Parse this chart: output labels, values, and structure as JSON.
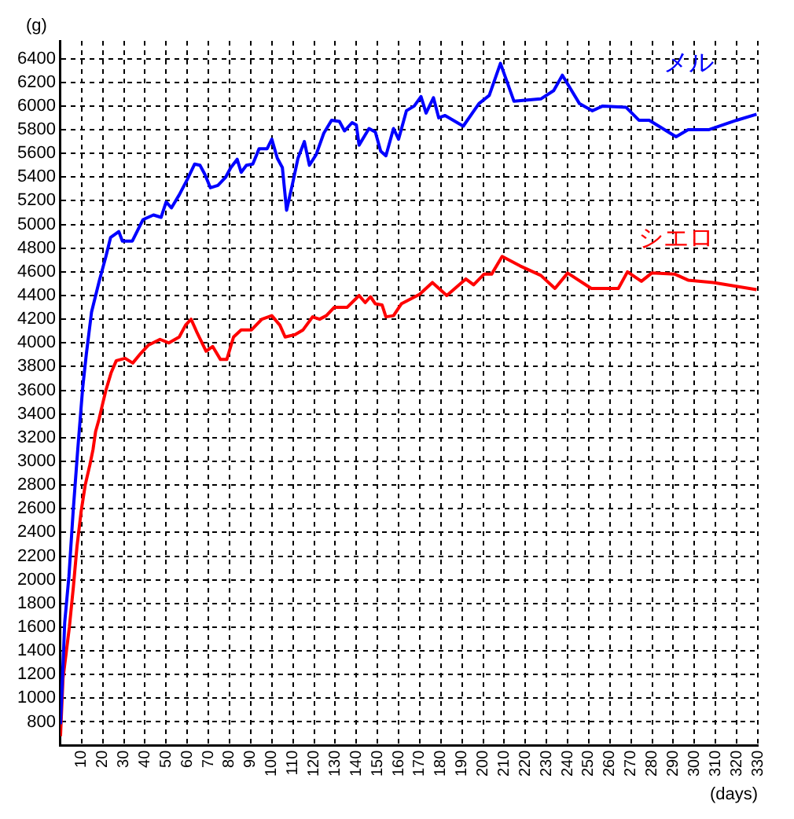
{
  "chart_data": {
    "type": "line",
    "xlabel": "(days)",
    "ylabel": "(g)",
    "xlim": [
      0,
      330
    ],
    "ylim": [
      600,
      6550
    ],
    "xticks": [
      10,
      20,
      30,
      40,
      50,
      60,
      70,
      80,
      90,
      100,
      110,
      120,
      130,
      140,
      150,
      160,
      170,
      180,
      190,
      200,
      210,
      220,
      230,
      240,
      250,
      260,
      270,
      280,
      290,
      300,
      310,
      320,
      330
    ],
    "yticks": [
      800,
      1000,
      1200,
      1400,
      1600,
      1800,
      2000,
      2200,
      2400,
      2600,
      2800,
      3000,
      3200,
      3400,
      3600,
      3800,
      4000,
      4200,
      4400,
      4600,
      4800,
      5000,
      5200,
      5400,
      5600,
      5800,
      6000,
      6200,
      6400
    ],
    "grid": true,
    "legend": false,
    "line_style": "solid",
    "marker": "none",
    "series": [
      {
        "name": "メル",
        "color": "#0000ff",
        "x": [
          0,
          1,
          2,
          4,
          6,
          8,
          10.5,
          12.2,
          14.7,
          18.3,
          21.5,
          23.7,
          27.6,
          29.3,
          34,
          39,
          44,
          47.6,
          50,
          52.5,
          56.2,
          60,
          63.5,
          66,
          68.4,
          70.9,
          74.5,
          78.2,
          80.6,
          83.6,
          85.5,
          88,
          91,
          94,
          97.8,
          100,
          102.6,
          105,
          107,
          110,
          112.4,
          115.4,
          117.8,
          121,
          124.6,
          128.3,
          132,
          134.4,
          138,
          140,
          141.3,
          144,
          146,
          149,
          151.5,
          154,
          157.6,
          160,
          163.7,
          167.4,
          170.6,
          173,
          176.5,
          179,
          182,
          190.6,
          198,
          202.9,
          208.2,
          214.6,
          227.3,
          233.4,
          237.5,
          245.6,
          251.7,
          256.6,
          267.6,
          273.7,
          278.6,
          291.3,
          297,
          306.7,
          320,
          329.4
        ],
        "values": [
          780,
          1200,
          1640,
          2030,
          2580,
          3060,
          3620,
          3900,
          4260,
          4520,
          4730,
          4890,
          4940,
          4860,
          4860,
          5040,
          5080,
          5060,
          5190,
          5140,
          5250,
          5380,
          5510,
          5500,
          5420,
          5310,
          5330,
          5400,
          5480,
          5550,
          5440,
          5500,
          5510,
          5640,
          5640,
          5720,
          5560,
          5480,
          5120,
          5360,
          5560,
          5700,
          5500,
          5590,
          5770,
          5880,
          5870,
          5790,
          5860,
          5840,
          5670,
          5750,
          5810,
          5780,
          5620,
          5580,
          5810,
          5720,
          5960,
          6000,
          6080,
          5940,
          6070,
          5900,
          5920,
          5830,
          6020,
          6090,
          6360,
          6040,
          6060,
          6130,
          6260,
          6020,
          5960,
          6000,
          5990,
          5880,
          5880,
          5740,
          5800,
          5800,
          5880,
          5930
        ]
      },
      {
        "name": "シエロ",
        "color": "#ff0000",
        "x": [
          0,
          1.2,
          2.4,
          4.2,
          6.1,
          7.8,
          9.8,
          11.7,
          13.9,
          15.4,
          16.6,
          18.3,
          20,
          21.5,
          24,
          26.4,
          30.6,
          34.2,
          37.9,
          41.5,
          47.1,
          51.3,
          56.2,
          59.2,
          61.8,
          64.8,
          68.9,
          72,
          75.7,
          78.7,
          81.9,
          85.5,
          90.4,
          95.3,
          100,
          103.8,
          106.3,
          111,
          114.8,
          119.3,
          122.6,
          125.8,
          129.5,
          135.6,
          141.3,
          144.2,
          146.7,
          149,
          152.2,
          154,
          157.6,
          161.3,
          169.9,
          176,
          182.8,
          191.8,
          195.5,
          200.4,
          204,
          209,
          217.5,
          227.3,
          234,
          240,
          251.2,
          264,
          268.3,
          274.9,
          279.8,
          290.8,
          297,
          309,
          329.4
        ],
        "values": [
          680,
          1170,
          1340,
          1600,
          1940,
          2280,
          2580,
          2800,
          2970,
          3100,
          3250,
          3360,
          3490,
          3600,
          3750,
          3850,
          3870,
          3830,
          3910,
          3980,
          4030,
          4000,
          4050,
          4150,
          4200,
          4080,
          3930,
          3970,
          3860,
          3860,
          4050,
          4110,
          4110,
          4200,
          4230,
          4150,
          4050,
          4070,
          4110,
          4220,
          4200,
          4230,
          4300,
          4300,
          4400,
          4340,
          4390,
          4330,
          4320,
          4220,
          4230,
          4330,
          4410,
          4510,
          4400,
          4540,
          4490,
          4580,
          4580,
          4730,
          4650,
          4570,
          4460,
          4590,
          4460,
          4460,
          4600,
          4520,
          4590,
          4580,
          4530,
          4510,
          4450
        ]
      }
    ]
  }
}
